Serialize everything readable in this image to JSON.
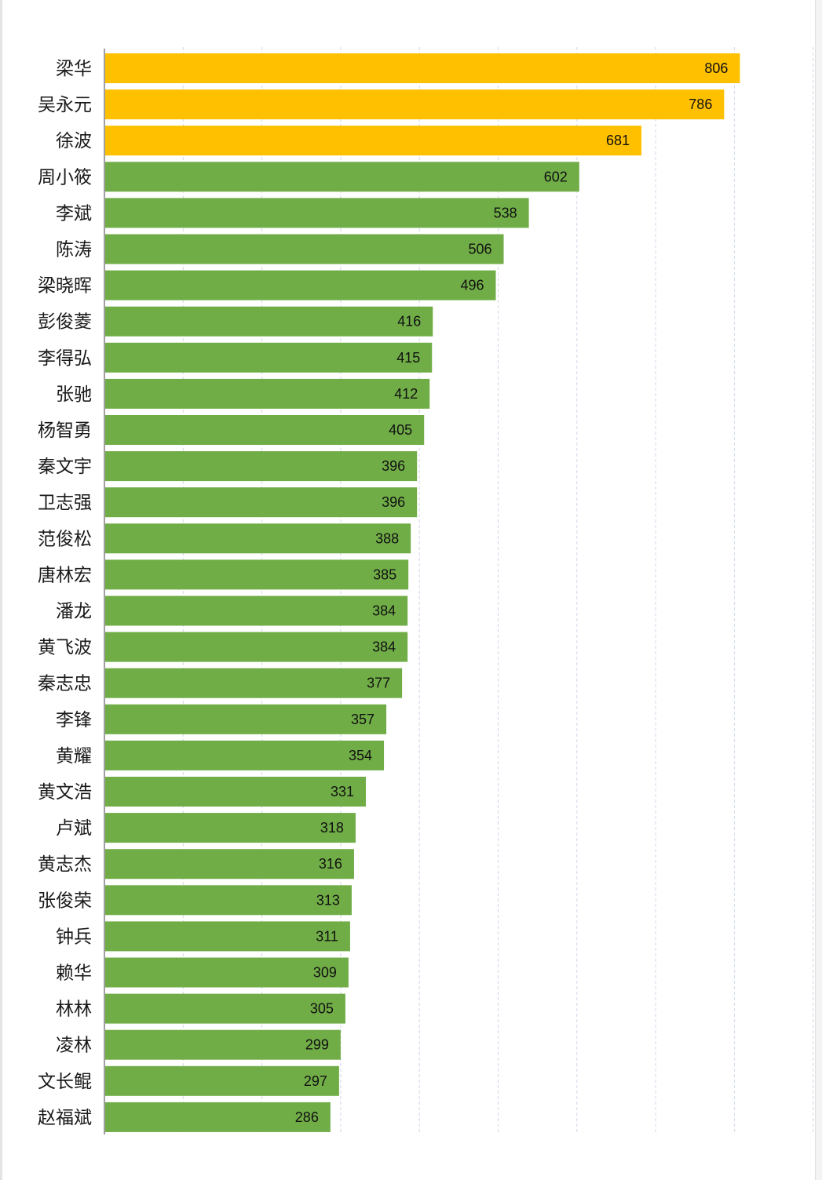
{
  "chart_data": {
    "type": "bar",
    "orientation": "horizontal",
    "title": "",
    "xlabel": "",
    "ylabel": "",
    "xlim": [
      0,
      900
    ],
    "grid": true,
    "legend": "none",
    "colors": {
      "highlight": "#FFC000",
      "default": "#70AD47",
      "grid": "#D0D8E8",
      "axis": "#808080"
    },
    "highlight_top_n": 3,
    "categories": [
      "梁华",
      "吴永元",
      "徐波",
      "周小筱",
      "李斌",
      "陈涛",
      "梁晓晖",
      "彭俊菱",
      "李得弘",
      "张驰",
      "杨智勇",
      "秦文宇",
      "卫志强",
      "范俊松",
      "唐林宏",
      "潘龙",
      "黄飞波",
      "秦志忠",
      "李锋",
      "黄耀",
      "黄文浩",
      "卢斌",
      "黄志杰",
      "张俊荣",
      "钟兵",
      "赖华",
      "林林",
      "凌林",
      "文长鲲",
      "赵福斌"
    ],
    "values": [
      806,
      786,
      681,
      602,
      538,
      506,
      496,
      416,
      415,
      412,
      405,
      396,
      396,
      388,
      385,
      384,
      384,
      377,
      357,
      354,
      331,
      318,
      316,
      313,
      311,
      309,
      305,
      299,
      297,
      286
    ]
  }
}
